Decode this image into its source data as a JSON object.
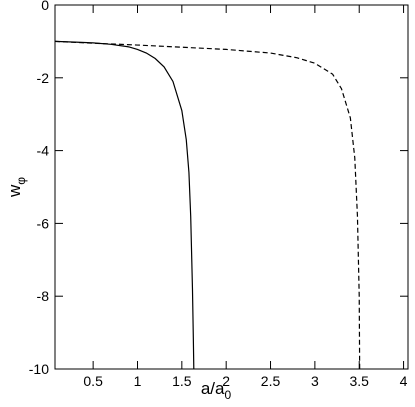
{
  "chart_data": {
    "type": "line",
    "x_label": {
      "base": "a/a",
      "sub": "0"
    },
    "y_label": {
      "base": "w",
      "sub": "φ"
    },
    "xlim": [
      0.07,
      4.05
    ],
    "ylim": [
      -10,
      0
    ],
    "xticks": [
      0.5,
      1,
      1.5,
      2,
      2.5,
      3,
      3.5,
      4
    ],
    "yticks": [
      -10,
      -8,
      -6,
      -4,
      -2,
      0
    ],
    "series": [
      {
        "color": "#000000",
        "dash": "solid",
        "x": [
          0.07,
          0.3,
          0.5,
          0.7,
          0.9,
          1.0,
          1.1,
          1.2,
          1.3,
          1.4,
          1.5,
          1.55,
          1.58,
          1.6,
          1.62,
          1.63,
          1.635
        ],
        "values": [
          -1,
          -1.02,
          -1.04,
          -1.08,
          -1.15,
          -1.22,
          -1.32,
          -1.47,
          -1.7,
          -2.1,
          -2.9,
          -3.7,
          -4.6,
          -5.8,
          -7.8,
          -9.2,
          -10
        ]
      },
      {
        "color": "#000000",
        "dash": "dashed",
        "x": [
          0.07,
          0.5,
          1.0,
          1.5,
          2.0,
          2.5,
          2.8,
          3.0,
          3.2,
          3.3,
          3.4,
          3.45,
          3.48,
          3.5,
          3.505
        ],
        "values": [
          -1,
          -1.05,
          -1.1,
          -1.16,
          -1.22,
          -1.32,
          -1.45,
          -1.6,
          -1.9,
          -2.3,
          -3.1,
          -4.2,
          -5.8,
          -8,
          -10
        ]
      }
    ]
  }
}
